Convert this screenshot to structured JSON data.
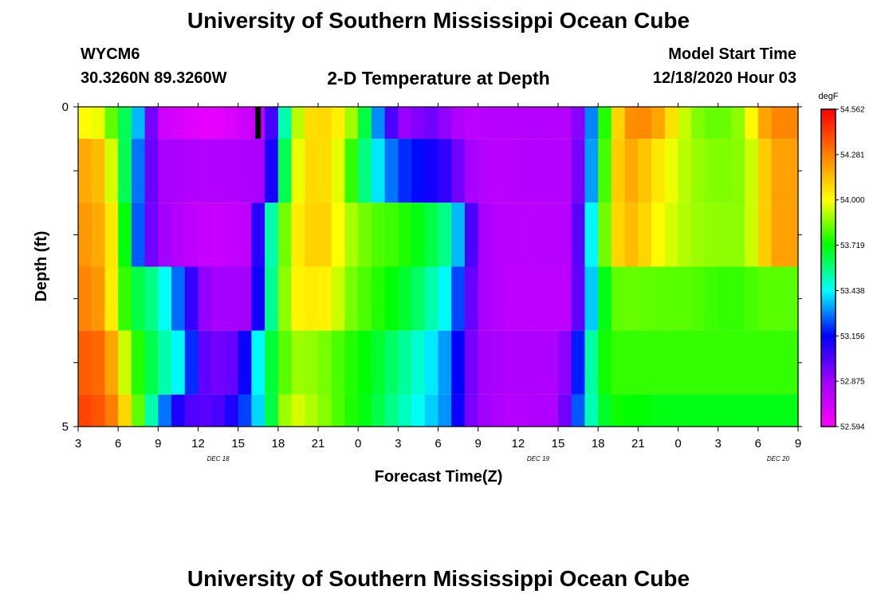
{
  "header": {
    "title": "University of Southern Mississippi Ocean Cube",
    "station": "WYCM6",
    "location": "30.3260N 89.3260W",
    "plot_title": "2-D Temperature at Depth",
    "model_label": "Model Start Time",
    "model_time": "12/18/2020 Hour 03"
  },
  "footer": {
    "title": "University of Southern Mississippi Ocean Cube"
  },
  "chart_data": {
    "type": "heatmap",
    "title": "2-D Temperature at Depth",
    "xlabel": "Forecast Time(Z)",
    "ylabel": "Depth (ft)",
    "x_start_hour": 3,
    "x_hours": 54,
    "x_ticks": [
      "3",
      "6",
      "9",
      "12",
      "15",
      "18",
      "21",
      "0",
      "3",
      "6",
      "9",
      "12",
      "15",
      "18",
      "21",
      "0",
      "3",
      "6",
      "9"
    ],
    "x_dates": [
      "DEC 18",
      "DEC 19",
      "DEC 20"
    ],
    "y_ticks": [
      "0",
      "5"
    ],
    "ylim": [
      0,
      5
    ],
    "colorbar": {
      "unit": "degF",
      "labels": [
        "54.562",
        "54.281",
        "54.000",
        "53.719",
        "53.438",
        "53.156",
        "52.875",
        "52.594"
      ],
      "min": 52.594,
      "max": 54.562,
      "colors": [
        "#ff00ff",
        "#a000ff",
        "#0000ff",
        "#00ffff",
        "#00ff00",
        "#ffff00",
        "#ff8000",
        "#ff0000"
      ]
    },
    "rows": [
      {
        "depth_band": "0-0.5",
        "knots": [
          [
            0,
            0.72
          ],
          [
            2,
            0.7
          ],
          [
            3,
            0.55
          ],
          [
            4,
            0.5
          ],
          [
            5,
            0.28
          ],
          [
            6,
            0.08
          ],
          [
            10,
            0.03
          ],
          [
            14,
            0.1
          ],
          [
            15,
            0.35
          ],
          [
            16,
            0.6
          ],
          [
            17,
            0.75
          ],
          [
            19,
            0.76
          ],
          [
            20,
            0.7
          ],
          [
            21,
            0.62
          ],
          [
            22,
            0.45
          ],
          [
            23,
            0.28
          ],
          [
            24,
            0.16
          ],
          [
            25,
            0.14
          ],
          [
            26,
            0.2
          ],
          [
            28,
            0.14
          ],
          [
            29,
            0.1
          ],
          [
            32,
            0.11
          ],
          [
            37,
            0.11
          ],
          [
            38,
            0.22
          ],
          [
            39,
            0.5
          ],
          [
            40,
            0.68
          ],
          [
            41,
            0.84
          ],
          [
            43,
            0.85
          ],
          [
            44,
            0.78
          ],
          [
            46,
            0.65
          ],
          [
            48,
            0.62
          ],
          [
            50,
            0.66
          ],
          [
            51,
            0.78
          ],
          [
            52,
            0.85
          ],
          [
            53,
            0.85
          ]
        ]
      },
      {
        "depth_band": "0.5-1.5",
        "knots": [
          [
            0,
            0.82
          ],
          [
            2,
            0.78
          ],
          [
            3,
            0.6
          ],
          [
            4,
            0.45
          ],
          [
            5,
            0.25
          ],
          [
            6,
            0.13
          ],
          [
            10,
            0.11
          ],
          [
            14,
            0.13
          ],
          [
            15,
            0.4
          ],
          [
            16,
            0.65
          ],
          [
            17,
            0.76
          ],
          [
            19,
            0.75
          ],
          [
            20,
            0.65
          ],
          [
            21,
            0.55
          ],
          [
            22,
            0.45
          ],
          [
            23,
            0.38
          ],
          [
            24,
            0.32
          ],
          [
            26,
            0.28
          ],
          [
            28,
            0.23
          ],
          [
            29,
            0.14
          ],
          [
            31,
            0.1
          ],
          [
            33,
            0.11
          ],
          [
            37,
            0.11
          ],
          [
            38,
            0.25
          ],
          [
            39,
            0.5
          ],
          [
            40,
            0.72
          ],
          [
            41,
            0.82
          ],
          [
            42,
            0.8
          ],
          [
            44,
            0.72
          ],
          [
            46,
            0.66
          ],
          [
            48,
            0.64
          ],
          [
            50,
            0.65
          ],
          [
            51,
            0.72
          ],
          [
            52,
            0.82
          ],
          [
            53,
            0.82
          ]
        ]
      },
      {
        "depth_band": "1.5-2.5",
        "knots": [
          [
            0,
            0.84
          ],
          [
            2,
            0.8
          ],
          [
            3,
            0.68
          ],
          [
            4,
            0.45
          ],
          [
            5,
            0.22
          ],
          [
            6,
            0.15
          ],
          [
            8,
            0.1
          ],
          [
            10,
            0.08
          ],
          [
            13,
            0.1
          ],
          [
            14,
            0.4
          ],
          [
            15,
            0.55
          ],
          [
            16,
            0.72
          ],
          [
            18,
            0.78
          ],
          [
            19,
            0.75
          ],
          [
            20,
            0.68
          ],
          [
            22,
            0.62
          ],
          [
            24,
            0.6
          ],
          [
            26,
            0.55
          ],
          [
            28,
            0.48
          ],
          [
            29,
            0.3
          ],
          [
            30,
            0.14
          ],
          [
            32,
            0.1
          ],
          [
            37,
            0.11
          ],
          [
            38,
            0.3
          ],
          [
            39,
            0.55
          ],
          [
            40,
            0.72
          ],
          [
            41,
            0.8
          ],
          [
            42,
            0.78
          ],
          [
            44,
            0.7
          ],
          [
            46,
            0.66
          ],
          [
            48,
            0.65
          ],
          [
            50,
            0.65
          ],
          [
            51,
            0.72
          ],
          [
            52,
            0.82
          ],
          [
            53,
            0.82
          ]
        ]
      },
      {
        "depth_band": "2.5-3.5",
        "knots": [
          [
            0,
            0.86
          ],
          [
            2,
            0.82
          ],
          [
            3,
            0.65
          ],
          [
            4,
            0.55
          ],
          [
            6,
            0.48
          ],
          [
            8,
            0.3
          ],
          [
            9,
            0.18
          ],
          [
            10,
            0.13
          ],
          [
            13,
            0.14
          ],
          [
            14,
            0.4
          ],
          [
            15,
            0.58
          ],
          [
            16,
            0.72
          ],
          [
            18,
            0.74
          ],
          [
            19,
            0.72
          ],
          [
            20,
            0.65
          ],
          [
            22,
            0.6
          ],
          [
            24,
            0.56
          ],
          [
            26,
            0.5
          ],
          [
            28,
            0.4
          ],
          [
            29,
            0.25
          ],
          [
            30,
            0.14
          ],
          [
            32,
            0.1
          ],
          [
            37,
            0.1
          ],
          [
            38,
            0.3
          ],
          [
            39,
            0.5
          ],
          [
            40,
            0.62
          ],
          [
            41,
            0.63
          ],
          [
            44,
            0.62
          ],
          [
            46,
            0.62
          ],
          [
            48,
            0.6
          ],
          [
            50,
            0.6
          ],
          [
            51,
            0.62
          ],
          [
            53,
            0.62
          ]
        ]
      },
      {
        "depth_band": "3.5-4.5",
        "knots": [
          [
            0,
            0.9
          ],
          [
            2,
            0.88
          ],
          [
            3,
            0.75
          ],
          [
            4,
            0.62
          ],
          [
            6,
            0.5
          ],
          [
            8,
            0.4
          ],
          [
            9,
            0.22
          ],
          [
            10,
            0.18
          ],
          [
            12,
            0.2
          ],
          [
            13,
            0.35
          ],
          [
            14,
            0.5
          ],
          [
            16,
            0.66
          ],
          [
            18,
            0.65
          ],
          [
            20,
            0.6
          ],
          [
            22,
            0.56
          ],
          [
            24,
            0.5
          ],
          [
            26,
            0.44
          ],
          [
            28,
            0.35
          ],
          [
            29,
            0.22
          ],
          [
            30,
            0.14
          ],
          [
            32,
            0.12
          ],
          [
            36,
            0.12
          ],
          [
            37,
            0.2
          ],
          [
            38,
            0.4
          ],
          [
            39,
            0.56
          ],
          [
            40,
            0.6
          ],
          [
            44,
            0.6
          ],
          [
            53,
            0.6
          ]
        ]
      },
      {
        "depth_band": "4.5-5",
        "knots": [
          [
            0,
            0.93
          ],
          [
            2,
            0.9
          ],
          [
            3,
            0.82
          ],
          [
            4,
            0.7
          ],
          [
            5,
            0.55
          ],
          [
            6,
            0.4
          ],
          [
            7,
            0.3
          ],
          [
            8,
            0.22
          ],
          [
            10,
            0.2
          ],
          [
            12,
            0.28
          ],
          [
            14,
            0.45
          ],
          [
            15,
            0.62
          ],
          [
            16,
            0.7
          ],
          [
            18,
            0.66
          ],
          [
            20,
            0.6
          ],
          [
            22,
            0.55
          ],
          [
            24,
            0.48
          ],
          [
            26,
            0.42
          ],
          [
            28,
            0.35
          ],
          [
            29,
            0.2
          ],
          [
            30,
            0.15
          ],
          [
            32,
            0.11
          ],
          [
            36,
            0.12
          ],
          [
            37,
            0.25
          ],
          [
            38,
            0.42
          ],
          [
            39,
            0.52
          ],
          [
            40,
            0.58
          ],
          [
            44,
            0.56
          ],
          [
            53,
            0.56
          ]
        ]
      }
    ],
    "marker": {
      "hour": 13.5,
      "depth_range": [
        0,
        0.5
      ],
      "color": "#000000"
    }
  }
}
